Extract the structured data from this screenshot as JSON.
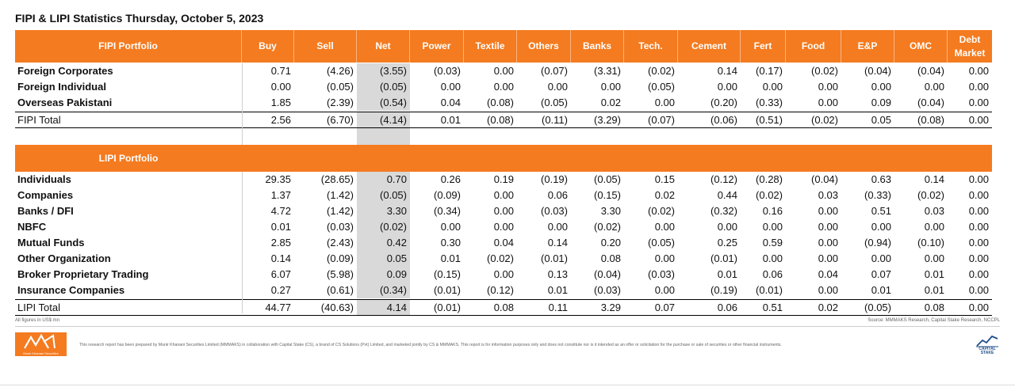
{
  "title": "FIPI & LIPI Statistics Thursday, October 5, 2023",
  "columns": [
    "Buy",
    "Sell",
    "Net",
    "Power",
    "Textile",
    "Others",
    "Banks",
    "Tech.",
    "Cement",
    "Fert",
    "Food",
    "E&P",
    "OMC",
    "Debt Market"
  ],
  "fipi": {
    "header": "FIPI Portfolio",
    "rows": [
      {
        "label": "Foreign Corporates",
        "values": [
          "0.71",
          "(4.26)",
          "(3.55)",
          "(0.03)",
          "0.00",
          "(0.07)",
          "(3.31)",
          "(0.02)",
          "0.14",
          "(0.17)",
          "(0.02)",
          "(0.04)",
          "(0.04)",
          "0.00"
        ]
      },
      {
        "label": "Foreign Individual",
        "values": [
          "0.00",
          "(0.05)",
          "(0.05)",
          "0.00",
          "0.00",
          "0.00",
          "0.00",
          "(0.05)",
          "0.00",
          "0.00",
          "0.00",
          "0.00",
          "0.00",
          "0.00"
        ]
      },
      {
        "label": "Overseas Pakistani",
        "values": [
          "1.85",
          "(2.39)",
          "(0.54)",
          "0.04",
          "(0.08)",
          "(0.05)",
          "0.02",
          "0.00",
          "(0.20)",
          "(0.33)",
          "0.00",
          "0.09",
          "(0.04)",
          "0.00"
        ]
      }
    ],
    "total": {
      "label": "FIPI Total",
      "values": [
        "2.56",
        "(6.70)",
        "(4.14)",
        "0.01",
        "(0.08)",
        "(0.11)",
        "(3.29)",
        "(0.07)",
        "(0.06)",
        "(0.51)",
        "(0.02)",
        "0.05",
        "(0.08)",
        "0.00"
      ]
    }
  },
  "lipi": {
    "header": "LIPI Portfolio",
    "rows": [
      {
        "label": "Individuals",
        "values": [
          "29.35",
          "(28.65)",
          "0.70",
          "0.26",
          "0.19",
          "(0.19)",
          "(0.05)",
          "0.15",
          "(0.12)",
          "(0.28)",
          "(0.04)",
          "0.63",
          "0.14",
          "0.00"
        ]
      },
      {
        "label": "Companies",
        "values": [
          "1.37",
          "(1.42)",
          "(0.05)",
          "(0.09)",
          "0.00",
          "0.06",
          "(0.15)",
          "0.02",
          "0.44",
          "(0.02)",
          "0.03",
          "(0.33)",
          "(0.02)",
          "0.00"
        ]
      },
      {
        "label": "Banks / DFI",
        "values": [
          "4.72",
          "(1.42)",
          "3.30",
          "(0.34)",
          "0.00",
          "(0.03)",
          "3.30",
          "(0.02)",
          "(0.32)",
          "0.16",
          "0.00",
          "0.51",
          "0.03",
          "0.00"
        ]
      },
      {
        "label": "NBFC",
        "values": [
          "0.01",
          "(0.03)",
          "(0.02)",
          "0.00",
          "0.00",
          "0.00",
          "(0.02)",
          "0.00",
          "0.00",
          "0.00",
          "0.00",
          "0.00",
          "0.00",
          "0.00"
        ]
      },
      {
        "label": "Mutual Funds",
        "values": [
          "2.85",
          "(2.43)",
          "0.42",
          "0.30",
          "0.04",
          "0.14",
          "0.20",
          "(0.05)",
          "0.25",
          "0.59",
          "0.00",
          "(0.94)",
          "(0.10)",
          "0.00"
        ]
      },
      {
        "label": "Other Organization",
        "values": [
          "0.14",
          "(0.09)",
          "0.05",
          "0.01",
          "(0.02)",
          "(0.01)",
          "0.08",
          "0.00",
          "(0.01)",
          "0.00",
          "0.00",
          "0.00",
          "0.00",
          "0.00"
        ]
      },
      {
        "label": "Broker Proprietary Trading",
        "values": [
          "6.07",
          "(5.98)",
          "0.09",
          "(0.15)",
          "0.00",
          "0.13",
          "(0.04)",
          "(0.03)",
          "0.01",
          "0.06",
          "0.04",
          "0.07",
          "0.01",
          "0.00"
        ]
      },
      {
        "label": "Insurance Companies",
        "values": [
          "0.27",
          "(0.61)",
          "(0.34)",
          "(0.01)",
          "(0.12)",
          "0.01",
          "(0.03)",
          "0.00",
          "(0.19)",
          "(0.01)",
          "0.00",
          "0.01",
          "0.01",
          "0.00"
        ]
      }
    ],
    "total": {
      "label": "LIPI Total",
      "values": [
        "44.77",
        "(40.63)",
        "4.14",
        "(0.01)",
        "0.08",
        "0.11",
        "3.29",
        "0.07",
        "0.06",
        "0.51",
        "0.02",
        "(0.05)",
        "0.08",
        "0.00"
      ]
    }
  },
  "footer": {
    "note": "All figures in US$ mn",
    "source": "Source: MMMAKS Research, Capital Stake Research, NCCPL",
    "disclaimer": "This research report has been prepared by Munir Khanani Securities Limited (MMMAKS) in collaboration with Capital Stake (CS), a brand of CS Solutions (Pvt) Limited, and marketed jointly by CS & MMMAKS. This report is for information purposes only and does not constitute nor is it intended as an offer or solicitation for the purchase or sale of securities or other financial instruments.",
    "logo_left_text": "Munir Khanani Securities",
    "logo_right_text": "CAPITAL STAKE"
  },
  "colors": {
    "accent": "#f47b20",
    "net_shade": "#d9d9d9"
  }
}
